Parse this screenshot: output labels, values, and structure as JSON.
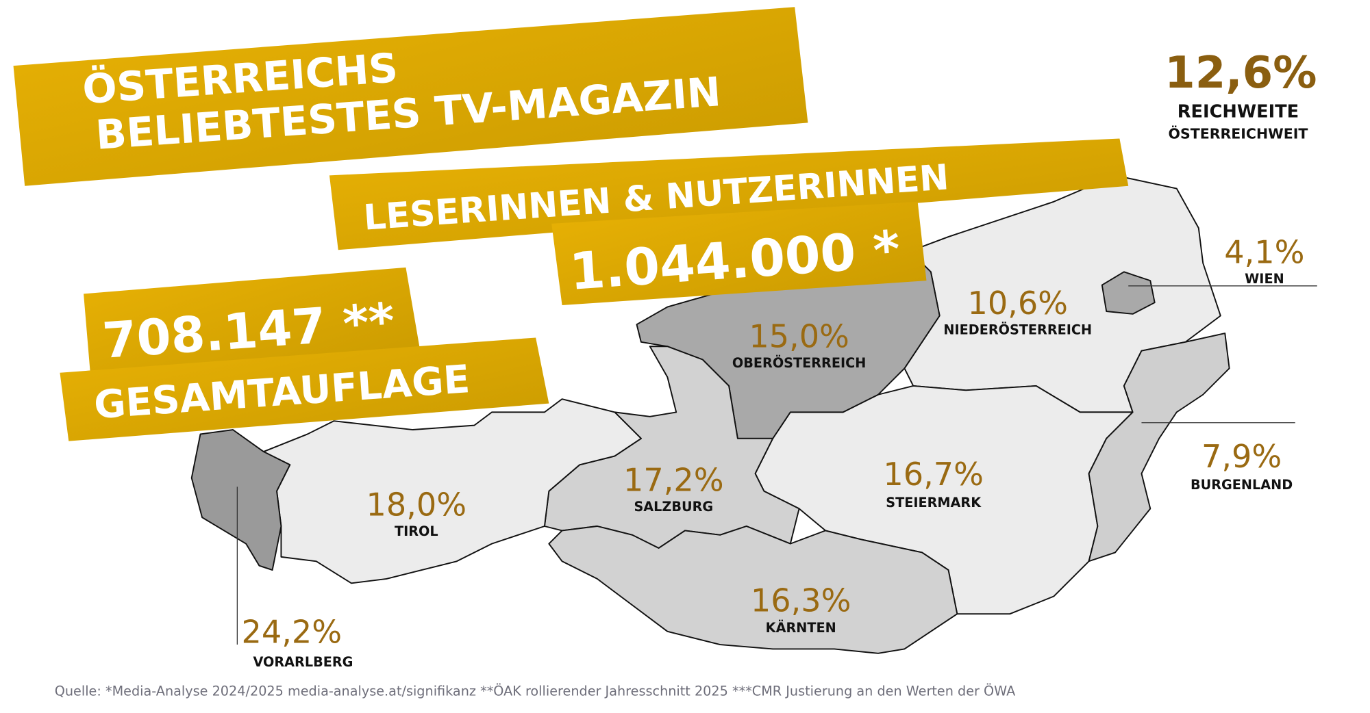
{
  "header": {
    "title_lines": [
      "ÖSTERREICHS",
      "BELIEBTESTES TV-MAGAZIN"
    ],
    "readers_label": "LESERINNEN & NUTZERINNEN",
    "readers_value": "1.044.000 *",
    "circulation_value": "708.147 **",
    "circulation_label": "GESAMTAUFLAGE",
    "reach_value": "12,6%",
    "reach_label_lines": [
      "REICHWEITE",
      "ÖSTERREICHWEIT"
    ]
  },
  "regions": [
    {
      "name": "VORARLBERG",
      "value": "24,2%"
    },
    {
      "name": "TIROL",
      "value": "18,0%"
    },
    {
      "name": "SALZBURG",
      "value": "17,2%"
    },
    {
      "name": "OBERÖSTERREICH",
      "value": "15,0%"
    },
    {
      "name": "NIEDERÖSTERREICH",
      "value": "10,6%"
    },
    {
      "name": "WIEN",
      "value": "4,1%"
    },
    {
      "name": "BURGENLAND",
      "value": "7,9%"
    },
    {
      "name": "STEIERMARK",
      "value": "16,7%"
    },
    {
      "name": "KÄRNTEN",
      "value": "16,3%"
    }
  ],
  "source": "Quelle:  *Media-Analyse 2024/2025 media-analyse.at/signifikanz   **ÖAK rollierender Jahresschnitt 2025 ***CMR Justierung an den Werten der ÖWA"
}
